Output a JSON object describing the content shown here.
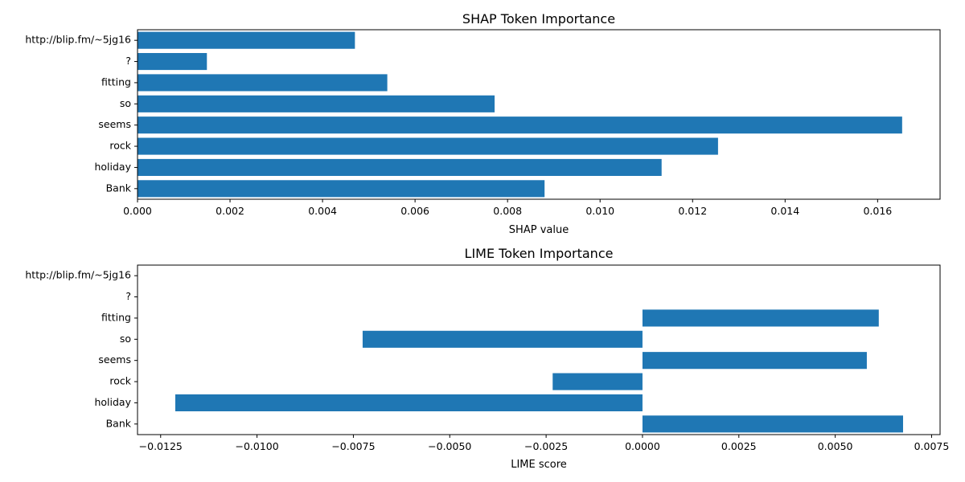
{
  "chart_data": [
    {
      "type": "bar",
      "orientation": "horizontal",
      "title": "SHAP Token Importance",
      "xlabel": "SHAP value",
      "ylabel": "",
      "categories": [
        "Bank",
        "holiday",
        "rock",
        "seems",
        "so",
        "fitting",
        "?",
        "http://blip.fm/~5jg16"
      ],
      "values": [
        0.0088,
        0.01133,
        0.01255,
        0.01653,
        0.00772,
        0.0054,
        0.0015,
        0.0047
      ],
      "xlim": [
        0,
        0.01735
      ],
      "xticks": [
        0.0,
        0.002,
        0.004,
        0.006,
        0.008,
        0.01,
        0.012,
        0.014,
        0.016
      ],
      "xtick_labels": [
        "0.000",
        "0.002",
        "0.004",
        "0.006",
        "0.008",
        "0.010",
        "0.012",
        "0.014",
        "0.016"
      ],
      "color": "#1f77b4",
      "grid": false,
      "legend": false
    },
    {
      "type": "bar",
      "orientation": "horizontal",
      "title": "LIME Token Importance",
      "xlabel": "LIME score",
      "ylabel": "",
      "categories": [
        "Bank",
        "holiday",
        "rock",
        "seems",
        "so",
        "fitting",
        "?",
        "http://blip.fm/~5jg16"
      ],
      "values": [
        0.00676,
        -0.01212,
        -0.00233,
        0.00582,
        -0.00726,
        0.00613,
        0,
        0
      ],
      "xlim": [
        -0.0131,
        0.00772
      ],
      "xticks": [
        -0.0125,
        -0.01,
        -0.0075,
        -0.005,
        -0.0025,
        0.0,
        0.0025,
        0.005,
        0.0075
      ],
      "xtick_labels": [
        "−0.0125",
        "−0.0100",
        "−0.0075",
        "−0.0050",
        "−0.0025",
        "0.0000",
        "0.0025",
        "0.0050",
        "0.0075"
      ],
      "color": "#1f77b4",
      "grid": false,
      "legend": false
    }
  ]
}
